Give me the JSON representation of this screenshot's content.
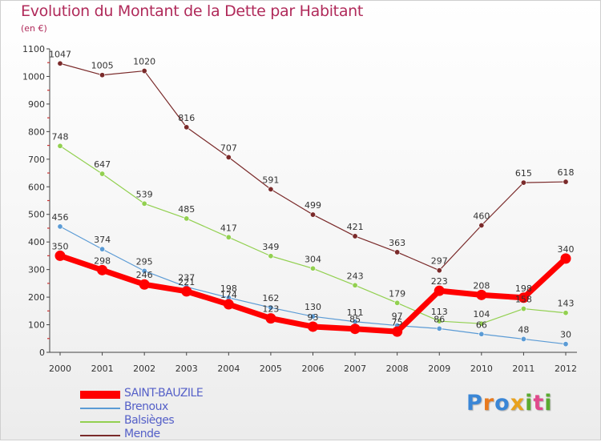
{
  "title": "Evolution du Montant de la Dette par Habitant",
  "subtitle": "(en €)",
  "logo": {
    "letters": [
      "P",
      "r",
      "o",
      "x",
      "i",
      "t",
      "i"
    ],
    "colors": [
      "#3a86d6",
      "#e87a1e",
      "#3a86d6",
      "#e8a21e",
      "#5aaa30",
      "#e04a8c",
      "#5aaa30"
    ]
  },
  "chart_data": {
    "type": "line",
    "title": "Evolution du Montant de la Dette par Habitant",
    "ylabel": "(en €)",
    "x": [
      "2000",
      "2001",
      "2002",
      "2003",
      "2004",
      "2005",
      "2006",
      "2007",
      "2008",
      "2009",
      "2010",
      "2011",
      "2012"
    ],
    "ylim": [
      0,
      1100
    ],
    "yticks": [
      "0",
      "100",
      "200",
      "300",
      "400",
      "500",
      "600",
      "700",
      "800",
      "900",
      "1000",
      "1100"
    ],
    "grid": false,
    "legend_position": "bottom-left",
    "series": [
      {
        "name": "SAINT-BAUZILE",
        "color": "#ff0000",
        "values": [
          350,
          298,
          246,
          221,
          174,
          123,
          93,
          85,
          75,
          223,
          208,
          198,
          340
        ],
        "labels": [
          "350",
          "298",
          "246",
          "221",
          "174",
          "123",
          "93",
          "85",
          "75",
          "223",
          "208",
          "198",
          "340"
        ]
      },
      {
        "name": "Brenoux",
        "color": "#5b9bd5",
        "values": [
          456,
          374,
          295,
          237,
          198,
          162,
          130,
          111,
          97,
          86,
          66,
          48,
          30
        ],
        "labels": [
          "456",
          "374",
          "295",
          "237",
          "198",
          "162",
          "130",
          "111",
          "97",
          "86",
          "66",
          "48",
          "30"
        ]
      },
      {
        "name": "Balsièges",
        "color": "#92d050",
        "values": [
          748,
          647,
          539,
          485,
          417,
          349,
          304,
          243,
          179,
          113,
          104,
          158,
          143
        ],
        "labels": [
          "748",
          "647",
          "539",
          "485",
          "417",
          "349",
          "304",
          "243",
          "179",
          "113",
          "104",
          "158",
          "143"
        ]
      },
      {
        "name": "Mende",
        "color": "#7a2a2a",
        "values": [
          1047,
          1005,
          1020,
          816,
          707,
          591,
          499,
          421,
          363,
          297,
          460,
          615,
          618
        ],
        "labels": [
          "1047",
          "1005",
          "1020",
          "816",
          "707",
          "591",
          "499",
          "421",
          "363",
          "297",
          "460",
          "615",
          "618"
        ]
      }
    ]
  }
}
